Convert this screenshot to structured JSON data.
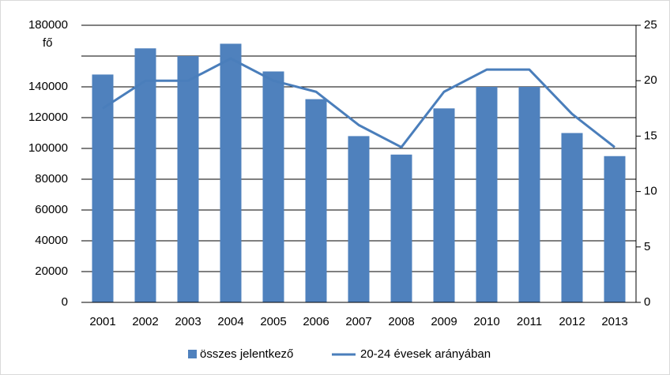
{
  "chart_data": {
    "type": "bar",
    "ylabel": "fő",
    "categories": [
      "2001",
      "2002",
      "2003",
      "2004",
      "2005",
      "2006",
      "2007",
      "2008",
      "2009",
      "2010",
      "2011",
      "2012",
      "2013"
    ],
    "series": [
      {
        "name": "összes jelentkező",
        "type": "bar",
        "color": "#4f81bd",
        "values": [
          148000,
          165000,
          160000,
          168000,
          150000,
          132000,
          108000,
          96000,
          126000,
          140000,
          140000,
          110000,
          95000
        ]
      },
      {
        "name": "20-24 évesek arányában",
        "type": "line",
        "axis": "y2",
        "color": "#4a7ebb",
        "values": [
          17.5,
          20,
          20,
          22,
          20,
          19,
          16,
          14,
          19,
          21,
          21,
          17,
          14
        ]
      }
    ],
    "ylim": [
      0,
      180000
    ],
    "yticks": [
      0,
      20000,
      40000,
      60000,
      80000,
      100000,
      120000,
      140000,
      180000
    ],
    "y_minor_ticks": [
      160000
    ],
    "y2lim": [
      0,
      25
    ],
    "y2ticks": [
      0,
      5,
      10,
      15,
      20,
      25
    ],
    "grid": true,
    "legend": "bottom"
  }
}
